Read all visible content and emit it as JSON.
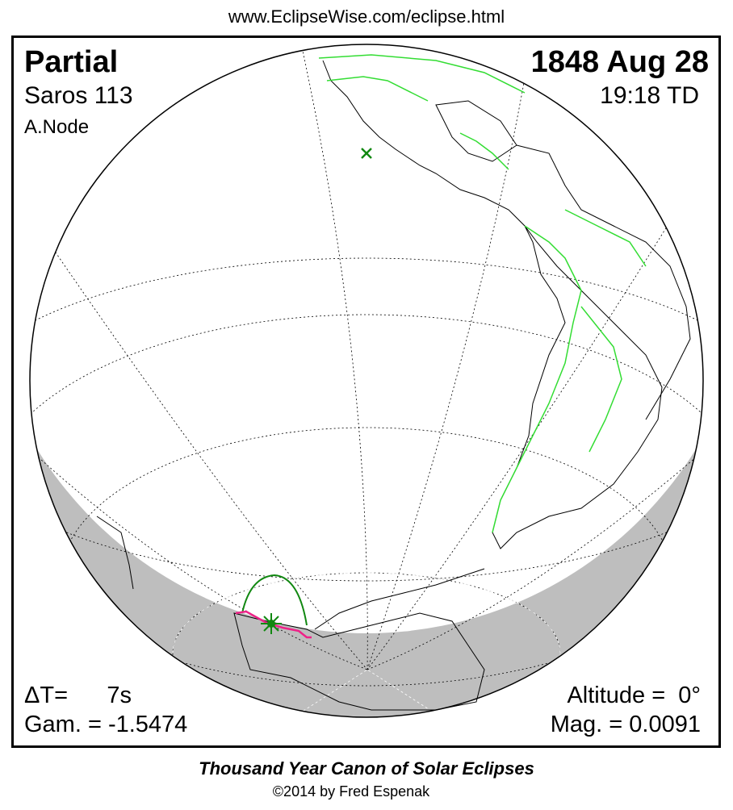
{
  "header": {
    "url": "www.EclipseWise.com/eclipse.html"
  },
  "eclipse": {
    "type": "Partial",
    "saros": "Saros 113",
    "node": "A.Node",
    "date": "1848 Aug 28",
    "time": "19:18 TD",
    "delta_t": "ΔT=      7s",
    "gamma": "Gam. = -1.5474",
    "altitude": "Altitude =  0°",
    "magnitude": "Mag. = 0.0091"
  },
  "footer": {
    "title": "Thousand Year Canon of Solar Eclipses",
    "copyright": "©2014 by Fred Espenak"
  },
  "colors": {
    "night": "#bebebe",
    "borders": "#33dd33",
    "eclipse_path": "#118811",
    "penumbra_limit": "#ee2288",
    "coast": "#000000"
  },
  "icons": {
    "greatest_eclipse": "star-marker",
    "sub_solar_point": "x-marker"
  }
}
